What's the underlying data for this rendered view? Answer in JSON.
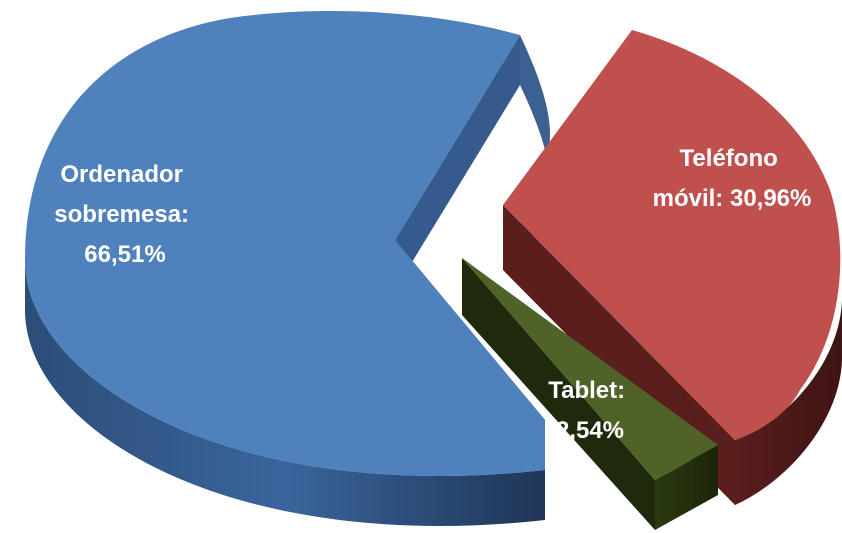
{
  "chart_data": {
    "type": "pie",
    "style": "3d-exploded",
    "categories": [
      "Ordenador sobremesa",
      "Teléfono móvil",
      "Tablet"
    ],
    "values": [
      66.51,
      30.96,
      2.54
    ],
    "colors": [
      "#4f81bd",
      "#c0504d",
      "#4f6228"
    ],
    "labels": [
      {
        "lines": [
          "Ordenador",
          "sobremesa:",
          "66,51%"
        ]
      },
      {
        "lines": [
          "Teléfono",
          "móvil: 30,96%"
        ]
      },
      {
        "lines": [
          "Tablet:",
          "2,54%"
        ]
      }
    ]
  }
}
